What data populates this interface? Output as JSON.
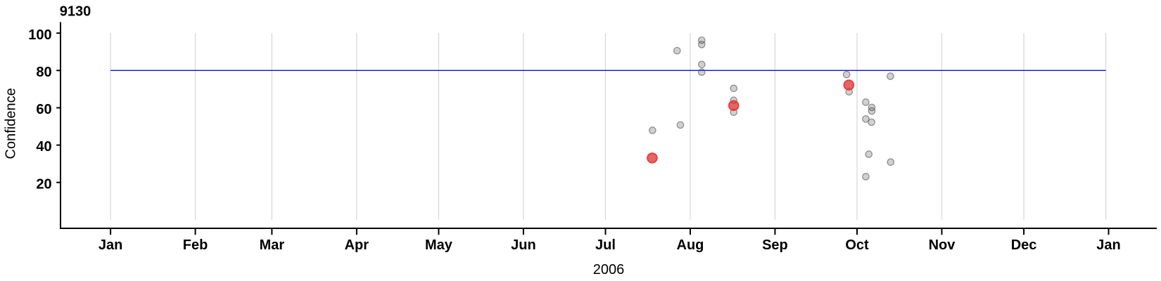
{
  "chart_data": {
    "type": "scatter",
    "title": "9130",
    "xlabel": "2006",
    "ylabel": "Confidence",
    "x_axis": {
      "unit": "day_of_year_2006",
      "tick_labels": [
        "Jan",
        "Feb",
        "Mar",
        "Apr",
        "May",
        "Jun",
        "Jul",
        "Aug",
        "Sep",
        "Oct",
        "Nov",
        "Dec",
        "Jan"
      ],
      "tick_days": [
        0,
        31,
        59,
        90,
        120,
        151,
        181,
        212,
        243,
        273,
        304,
        334,
        365
      ],
      "gridline_days": [
        0,
        31,
        59,
        90,
        120,
        151,
        181,
        212,
        243,
        273,
        304,
        334,
        364
      ],
      "xlim_days": [
        -18.3,
        382.6
      ],
      "grid": true
    },
    "y_axis": {
      "tick_values": [
        20,
        40,
        60,
        80,
        100
      ],
      "tick_labels": [
        "20",
        "40",
        "60",
        "80",
        "100"
      ],
      "ylim": [
        -4.6,
        105.9
      ],
      "grid": false
    },
    "reference_line": {
      "value": 80,
      "span_days": [
        0,
        364
      ],
      "color": "#0d0dee",
      "name": "confidence-threshold-line"
    },
    "series": [
      {
        "name": "detections",
        "marker": "small-gray-circle",
        "fill": "rgba(82,82,82,0.27)",
        "stroke": "rgba(60,60,60,0.55)",
        "radius": 4.7,
        "stroke_width": 1.2,
        "points": [
          {
            "day": 198.2,
            "date": "Jul 18",
            "confidence": 47.9
          },
          {
            "day": 207.2,
            "date": "Jul 27",
            "confidence": 90.6
          },
          {
            "day": 208.4,
            "date": "Jul 28",
            "confidence": 50.8
          },
          {
            "day": 216.2,
            "date": "Aug 5",
            "confidence": 96.2
          },
          {
            "day": 216.2,
            "date": "Aug 5",
            "confidence": 93.9
          },
          {
            "day": 216.2,
            "date": "Aug 5",
            "confidence": 83.2
          },
          {
            "day": 216.2,
            "date": "Aug 5",
            "confidence": 79.1
          },
          {
            "day": 227.9,
            "date": "Aug 16",
            "confidence": 70.4
          },
          {
            "day": 227.9,
            "date": "Aug 16",
            "confidence": 64.0
          },
          {
            "day": 227.9,
            "date": "Aug 16",
            "confidence": 57.6
          },
          {
            "day": 269.2,
            "date": "Sep 27",
            "confidence": 77.8
          },
          {
            "day": 270.1,
            "date": "Sep 28",
            "confidence": 68.6
          },
          {
            "day": 276.2,
            "date": "Oct 4",
            "confidence": 63.0
          },
          {
            "day": 278.4,
            "date": "Oct 6",
            "confidence": 60.2
          },
          {
            "day": 278.4,
            "date": "Oct 6",
            "confidence": 58.3
          },
          {
            "day": 276.2,
            "date": "Oct 4",
            "confidence": 54.0
          },
          {
            "day": 278.3,
            "date": "Oct 6",
            "confidence": 52.3
          },
          {
            "day": 277.3,
            "date": "Oct 5",
            "confidence": 35.1
          },
          {
            "day": 276.2,
            "date": "Oct 4",
            "confidence": 23.1
          },
          {
            "day": 285.3,
            "date": "Oct 13",
            "confidence": 30.9
          },
          {
            "day": 285.2,
            "date": "Oct 13",
            "confidence": 76.9
          }
        ]
      },
      {
        "name": "highlighted-detections",
        "marker": "large-red-circle",
        "fill": "rgba(211,44,44,0.72)",
        "stroke": "#f13b3b",
        "radius": 6.8,
        "stroke_width": 2.0,
        "points": [
          {
            "day": 198.1,
            "date": "Jul 18",
            "confidence": 33.1
          },
          {
            "day": 227.9,
            "date": "Aug 16",
            "confidence": 61.2
          },
          {
            "day": 270.0,
            "date": "Sep 28",
            "confidence": 72.2
          }
        ]
      }
    ],
    "colors": {
      "background": "#ffffff",
      "axis": "#000000",
      "gridline": "#d9d9d9",
      "reference_line": "#0d0dee",
      "gray_point": "#d0d0d0",
      "red_point": "#e25c5c",
      "text": "#000000"
    }
  }
}
